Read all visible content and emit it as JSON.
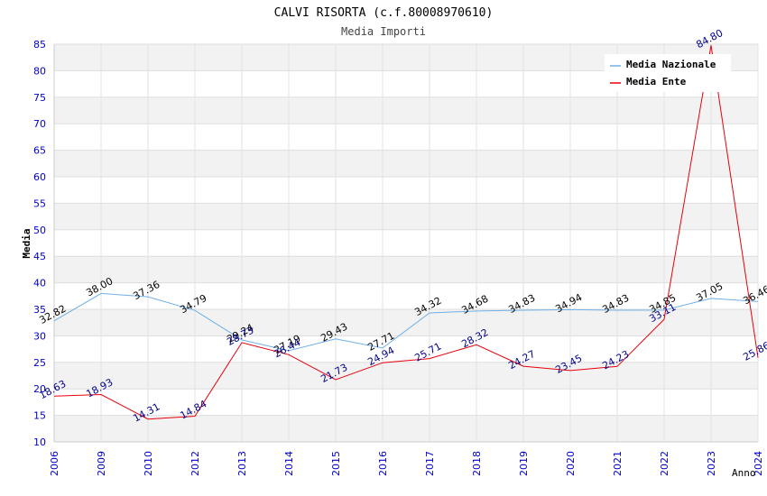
{
  "chart_data": {
    "type": "line",
    "title": "CALVI RISORTA (c.f.80008970610)",
    "subtitle": "Media Importi",
    "xlabel": "Anno",
    "ylabel": "Media",
    "ylim": [
      10,
      85
    ],
    "y_ticks": [
      10,
      15,
      20,
      25,
      30,
      35,
      40,
      45,
      50,
      55,
      60,
      65,
      70,
      75,
      80,
      85
    ],
    "categories": [
      "2006",
      "2009",
      "2010",
      "2012",
      "2013",
      "2014",
      "2015",
      "2016",
      "2017",
      "2018",
      "2019",
      "2020",
      "2021",
      "2022",
      "2023",
      "2024"
    ],
    "series": [
      {
        "name": "Media Nazionale",
        "color": "#6fb0e8",
        "label_color": "#000000",
        "values": [
          32.82,
          38.0,
          37.36,
          34.79,
          29.24,
          27.19,
          29.43,
          27.71,
          34.32,
          34.68,
          34.83,
          34.94,
          34.83,
          34.85,
          37.05,
          36.46
        ],
        "labels": [
          "32.82",
          "38.00",
          "37.36",
          "34.79",
          "29.24",
          "27.19",
          "29.43",
          "27.71",
          "34.32",
          "34.68",
          "34.83",
          "34.94",
          "34.83",
          "34.85",
          "37.05",
          "36.46"
        ]
      },
      {
        "name": "Media Ente",
        "color": "#e8000b",
        "label_color": "#00008b",
        "values": [
          18.63,
          18.93,
          14.31,
          14.84,
          28.73,
          26.44,
          21.73,
          24.94,
          25.71,
          28.32,
          24.27,
          23.45,
          24.23,
          33.11,
          84.8,
          25.86
        ],
        "labels": [
          "18.63",
          "18.93",
          "14.31",
          "14.84",
          "28.73",
          "26.44",
          "21.73",
          "24.94",
          "25.71",
          "28.32",
          "24.27",
          "23.45",
          "24.23",
          "33.11",
          "84.80",
          "25.86"
        ]
      }
    ],
    "legend_position": "top-right",
    "grid": true
  }
}
